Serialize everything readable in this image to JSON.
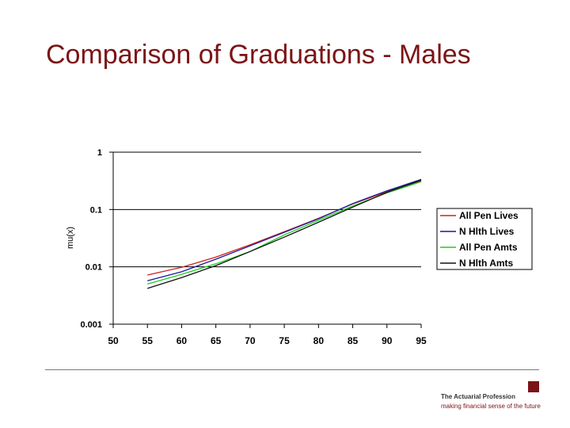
{
  "slide": {
    "title": "Comparison of Graduations - Males"
  },
  "footer": {
    "brand_name": "The Actuarial Profession",
    "brand_tagline": "making financial sense of the future",
    "brand_color": "#7b1416"
  },
  "chart_data": {
    "type": "line",
    "title": "",
    "xlabel": "",
    "ylabel": "mu(x)",
    "y_scale": "log",
    "xlim": [
      50,
      95
    ],
    "ylim": [
      0.001,
      1
    ],
    "x_ticks": [
      "50",
      "55",
      "60",
      "65",
      "70",
      "75",
      "80",
      "85",
      "90",
      "95"
    ],
    "y_ticks": [
      "1",
      "0.1",
      "0.01",
      "0.001"
    ],
    "grid": "horizontal",
    "legend_position": "right",
    "x": [
      55,
      60,
      65,
      70,
      75,
      80,
      85,
      90,
      95
    ],
    "series": [
      {
        "name": "All Pen Lives",
        "color": "#d02020",
        "values": [
          0.0072,
          0.0098,
          0.0148,
          0.0242,
          0.041,
          0.07,
          0.125,
          0.205,
          0.315
        ]
      },
      {
        "name": "N Hlth Lives",
        "color": "#1a1a9a",
        "values": [
          0.0057,
          0.0082,
          0.0136,
          0.0232,
          0.04,
          0.069,
          0.127,
          0.212,
          0.335
        ]
      },
      {
        "name": "All Pen Amts",
        "color": "#22cc22",
        "values": [
          0.005,
          0.0074,
          0.0113,
          0.0185,
          0.036,
          0.065,
          0.115,
          0.195,
          0.305
        ]
      },
      {
        "name": "N Hlth Amts",
        "color": "#111111",
        "values": [
          0.0042,
          0.0065,
          0.0105,
          0.0185,
          0.033,
          0.06,
          0.11,
          0.2,
          0.325
        ]
      }
    ]
  }
}
